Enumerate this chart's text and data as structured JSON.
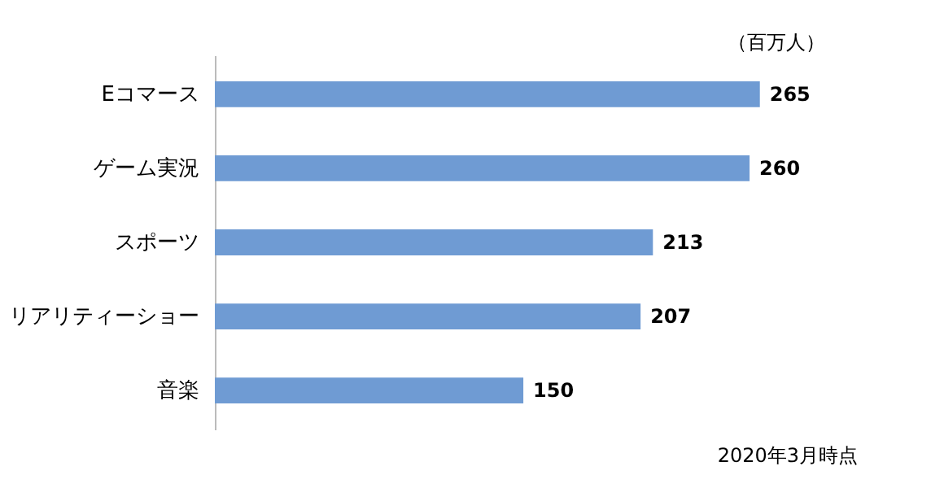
{
  "chart_data": {
    "type": "bar",
    "orientation": "horizontal",
    "categories": [
      "Eコマース",
      "ゲーム実況",
      "スポーツ",
      "リアリティーショー",
      "音楽"
    ],
    "values": [
      265,
      260,
      213,
      207,
      150
    ],
    "color": "#6f9bd3",
    "data_labels": true,
    "tick_labels": "y",
    "grid": false,
    "annotations": [
      "（百万人）",
      "2020年3月時点"
    ]
  }
}
